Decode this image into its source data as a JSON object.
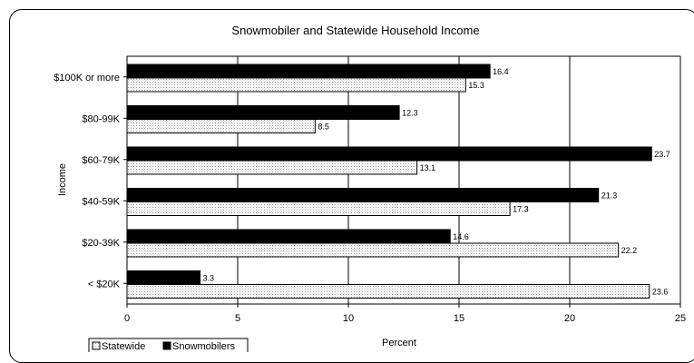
{
  "chart_data": {
    "type": "bar",
    "orientation": "horizontal",
    "title": "Snowmobiler and Statewide Household Income",
    "xlabel": "Percent",
    "ylabel": "Income",
    "categories": [
      "$100K or more",
      "$80-99K",
      "$60-79K",
      "$40-59K",
      "$20-39K",
      "< $20K"
    ],
    "series": [
      {
        "name": "Snowmobilers",
        "values": [
          16.4,
          12.3,
          23.7,
          21.3,
          14.6,
          3.3
        ],
        "color": "#000000"
      },
      {
        "name": "Statewide",
        "values": [
          15.3,
          8.5,
          13.1,
          17.3,
          22.2,
          23.6
        ],
        "color": "#ffffff",
        "pattern": "dotted"
      }
    ],
    "xlim": [
      0,
      25
    ],
    "xticks": [
      0,
      5,
      10,
      15,
      20,
      25
    ],
    "grid": "vertical",
    "legend": {
      "position": "bottom-left",
      "entries": [
        "Statewide",
        "Snowmobilers"
      ]
    }
  }
}
